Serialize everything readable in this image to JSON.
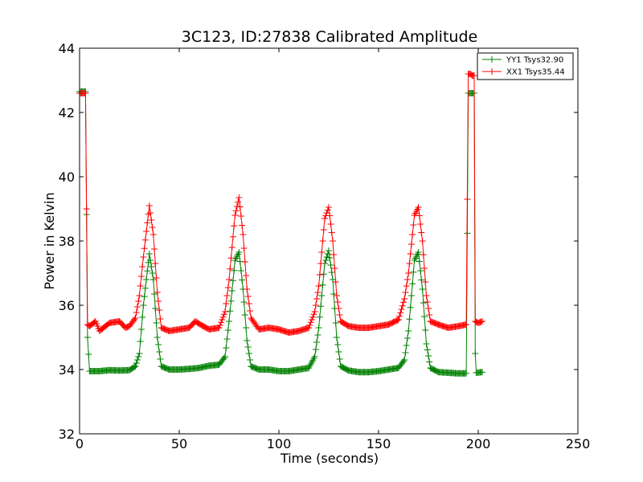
{
  "chart_data": {
    "type": "line",
    "title": "3C123, ID:27838 Calibrated Amplitude",
    "xlabel": "Time (seconds)",
    "ylabel": "Power in Kelvin",
    "xlim": [
      0,
      250
    ],
    "ylim": [
      32,
      44
    ],
    "xticks": [
      0,
      50,
      100,
      150,
      200,
      250
    ],
    "yticks": [
      32,
      34,
      36,
      38,
      40,
      42,
      44
    ],
    "grid": false,
    "legend_position": "top-right",
    "marker": "plus",
    "series": [
      {
        "name": "YY1 Tsys32.90",
        "color": "#008000",
        "points": [
          [
            0,
            42.65
          ],
          [
            3,
            42.65
          ],
          [
            4,
            35.0
          ],
          [
            5,
            33.95
          ],
          [
            10,
            33.95
          ],
          [
            15,
            33.98
          ],
          [
            20,
            33.97
          ],
          [
            25,
            33.98
          ],
          [
            28,
            34.1
          ],
          [
            30,
            34.5
          ],
          [
            32,
            36.0
          ],
          [
            35,
            37.6
          ],
          [
            37,
            36.8
          ],
          [
            39,
            35.0
          ],
          [
            41,
            34.1
          ],
          [
            45,
            34.0
          ],
          [
            50,
            34.0
          ],
          [
            55,
            34.02
          ],
          [
            60,
            34.05
          ],
          [
            65,
            34.12
          ],
          [
            70,
            34.15
          ],
          [
            73,
            34.4
          ],
          [
            75,
            35.5
          ],
          [
            78,
            37.4
          ],
          [
            80,
            37.65
          ],
          [
            82,
            36.5
          ],
          [
            84,
            34.9
          ],
          [
            86,
            34.1
          ],
          [
            90,
            34.0
          ],
          [
            95,
            34.0
          ],
          [
            100,
            33.95
          ],
          [
            105,
            33.95
          ],
          [
            110,
            34.0
          ],
          [
            115,
            34.05
          ],
          [
            118,
            34.4
          ],
          [
            120,
            35.3
          ],
          [
            123,
            37.3
          ],
          [
            125,
            37.7
          ],
          [
            127,
            36.8
          ],
          [
            129,
            35.0
          ],
          [
            131,
            34.1
          ],
          [
            135,
            33.97
          ],
          [
            140,
            33.92
          ],
          [
            145,
            33.92
          ],
          [
            150,
            33.95
          ],
          [
            155,
            34.0
          ],
          [
            160,
            34.05
          ],
          [
            163,
            34.3
          ],
          [
            165,
            35.2
          ],
          [
            168,
            37.4
          ],
          [
            170,
            37.65
          ],
          [
            172,
            36.5
          ],
          [
            174,
            34.8
          ],
          [
            176,
            34.05
          ],
          [
            180,
            33.92
          ],
          [
            185,
            33.9
          ],
          [
            190,
            33.88
          ],
          [
            194,
            33.88
          ],
          [
            195,
            42.6
          ],
          [
            196,
            42.6
          ],
          [
            197,
            42.6
          ],
          [
            198,
            42.6
          ],
          [
            198.5,
            34.5
          ],
          [
            199,
            33.9
          ],
          [
            202,
            33.92
          ]
        ]
      },
      {
        "name": "XX1 Tsys35.44",
        "color": "#ff0000",
        "points": [
          [
            0,
            42.6
          ],
          [
            3,
            42.6
          ],
          [
            4,
            35.4
          ],
          [
            5,
            35.35
          ],
          [
            8,
            35.5
          ],
          [
            10,
            35.2
          ],
          [
            12,
            35.3
          ],
          [
            15,
            35.45
          ],
          [
            20,
            35.5
          ],
          [
            23,
            35.3
          ],
          [
            25,
            35.35
          ],
          [
            28,
            35.6
          ],
          [
            30,
            36.3
          ],
          [
            32,
            37.5
          ],
          [
            35,
            39.1
          ],
          [
            37,
            38.2
          ],
          [
            39,
            36.4
          ],
          [
            41,
            35.3
          ],
          [
            45,
            35.2
          ],
          [
            50,
            35.25
          ],
          [
            55,
            35.3
          ],
          [
            58,
            35.5
          ],
          [
            62,
            35.35
          ],
          [
            65,
            35.25
          ],
          [
            70,
            35.3
          ],
          [
            73,
            35.8
          ],
          [
            75,
            36.8
          ],
          [
            78,
            38.8
          ],
          [
            80,
            39.35
          ],
          [
            82,
            38.2
          ],
          [
            84,
            36.5
          ],
          [
            86,
            35.6
          ],
          [
            90,
            35.25
          ],
          [
            95,
            35.3
          ],
          [
            100,
            35.25
          ],
          [
            105,
            35.15
          ],
          [
            110,
            35.2
          ],
          [
            115,
            35.3
          ],
          [
            118,
            35.8
          ],
          [
            120,
            36.6
          ],
          [
            123,
            38.7
          ],
          [
            125,
            39.05
          ],
          [
            127,
            38.0
          ],
          [
            129,
            36.3
          ],
          [
            131,
            35.5
          ],
          [
            135,
            35.35
          ],
          [
            140,
            35.3
          ],
          [
            145,
            35.3
          ],
          [
            150,
            35.35
          ],
          [
            155,
            35.4
          ],
          [
            160,
            35.55
          ],
          [
            163,
            36.2
          ],
          [
            165,
            37.0
          ],
          [
            168,
            38.8
          ],
          [
            170,
            39.05
          ],
          [
            172,
            38.0
          ],
          [
            174,
            36.3
          ],
          [
            176,
            35.5
          ],
          [
            180,
            35.4
          ],
          [
            185,
            35.3
          ],
          [
            190,
            35.35
          ],
          [
            194,
            35.4
          ],
          [
            195,
            43.2
          ],
          [
            196,
            43.2
          ],
          [
            197,
            43.15
          ],
          [
            198,
            43.15
          ],
          [
            198.5,
            35.5
          ],
          [
            200,
            35.45
          ],
          [
            202,
            35.5
          ]
        ]
      }
    ]
  }
}
